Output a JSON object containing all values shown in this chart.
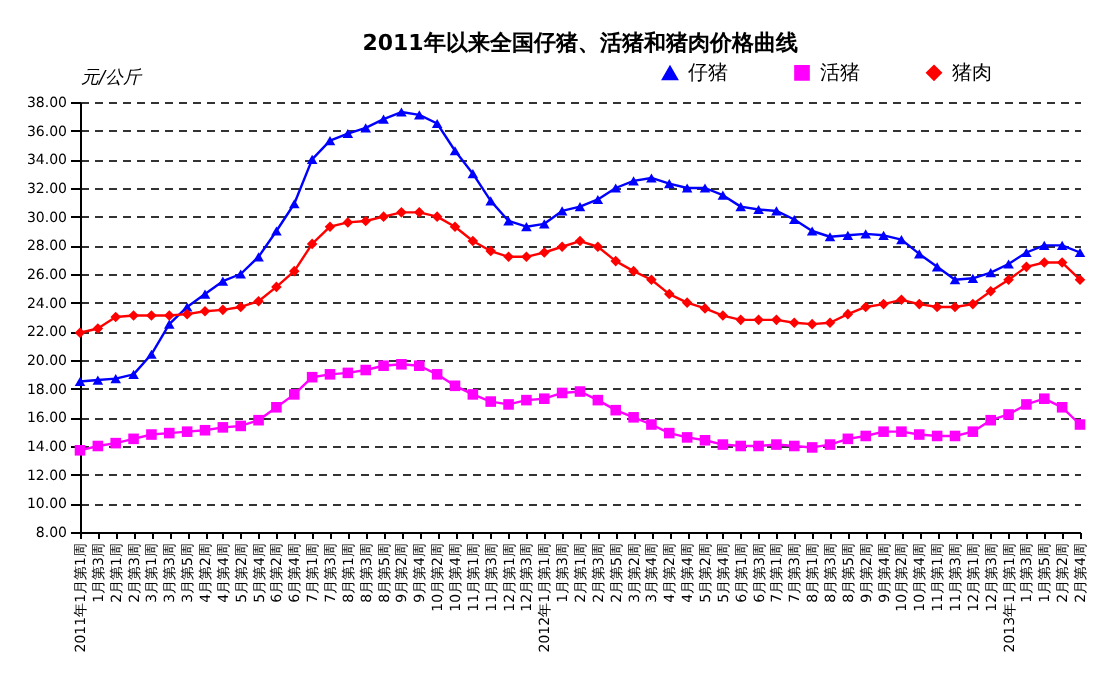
{
  "chart_data": {
    "type": "line",
    "title": "2011年以来全国仔猪、活猪和猪肉价格曲线",
    "ylabel": "元/公斤",
    "categories": [
      "2011年1月第1周",
      "1月第3周",
      "2月第1周",
      "2月第3周",
      "3月第1周",
      "3月第3周",
      "3月第5周",
      "4月第2周",
      "4月第4周",
      "5月第2周",
      "5月第4周",
      "6月第2周",
      "6月第4周",
      "7月第1周",
      "7月第3周",
      "8月第1周",
      "8月第3周",
      "8月第5周",
      "9月第2周",
      "9月第4周",
      "10月第2周",
      "10月第4周",
      "11月第1周",
      "11月第3周",
      "12月第1周",
      "12月第3周",
      "2012年1月第1周",
      "1月第3周",
      "2月第1周",
      "2月第3周",
      "2月第5周",
      "3月第2周",
      "3月第4周",
      "4月第2周",
      "4月第4周",
      "5月第2周",
      "5月第4周",
      "6月第1周",
      "6月第3周",
      "7月第1周",
      "7月第3周",
      "8月第1周",
      "8月第3周",
      "8月第5周",
      "9月第2周",
      "9月第4周",
      "10月第2周",
      "10月第4周",
      "11月第1周",
      "11月第3周",
      "12月第1周",
      "12月第3周",
      "2013年1月第1周",
      "1月第3周",
      "1月第5周",
      "2月第2周",
      "2月第4周"
    ],
    "series": [
      {
        "name": "仔猪",
        "color": "#0000ff",
        "marker": "triangle",
        "values": [
          18.5,
          18.6,
          18.7,
          19.0,
          20.4,
          22.5,
          23.7,
          24.6,
          25.5,
          26.0,
          27.2,
          29.0,
          30.9,
          34.0,
          35.3,
          35.8,
          36.2,
          36.8,
          37.3,
          37.1,
          36.5,
          34.6,
          33.0,
          31.1,
          29.7,
          29.3,
          29.5,
          30.4,
          30.7,
          31.2,
          32.0,
          32.5,
          32.7,
          32.3,
          32.0,
          32.0,
          31.5,
          30.7,
          30.5,
          30.4,
          29.8,
          29.0,
          28.6,
          28.7,
          28.8,
          28.7,
          28.4,
          27.4,
          26.5,
          25.6,
          25.7,
          26.1,
          26.7,
          27.5,
          28.0,
          28.0,
          27.5
        ]
      },
      {
        "name": "活猪",
        "color": "#ff00ff",
        "marker": "square",
        "values": [
          13.7,
          14.0,
          14.2,
          14.5,
          14.8,
          14.9,
          15.0,
          15.1,
          15.3,
          15.4,
          15.8,
          16.7,
          17.6,
          18.8,
          19.0,
          19.1,
          19.3,
          19.6,
          19.7,
          19.6,
          19.0,
          18.2,
          17.6,
          17.1,
          16.9,
          17.2,
          17.3,
          17.7,
          17.8,
          17.2,
          16.5,
          16.0,
          15.5,
          14.9,
          14.6,
          14.4,
          14.1,
          14.0,
          14.0,
          14.1,
          14.0,
          13.9,
          14.1,
          14.5,
          14.7,
          15.0,
          15.0,
          14.8,
          14.7,
          14.7,
          15.0,
          15.8,
          16.2,
          16.9,
          17.3,
          16.7,
          15.5
        ]
      },
      {
        "name": "猪肉",
        "color": "#ff0000",
        "marker": "diamond",
        "values": [
          21.9,
          22.2,
          23.0,
          23.1,
          23.1,
          23.1,
          23.2,
          23.4,
          23.5,
          23.7,
          24.1,
          25.1,
          26.2,
          28.1,
          29.3,
          29.6,
          29.7,
          30.0,
          30.3,
          30.3,
          30.0,
          29.3,
          28.3,
          27.6,
          27.2,
          27.2,
          27.5,
          27.9,
          28.3,
          27.9,
          26.9,
          26.2,
          25.6,
          24.6,
          24.0,
          23.6,
          23.1,
          22.8,
          22.8,
          22.8,
          22.6,
          22.5,
          22.6,
          23.2,
          23.7,
          23.9,
          24.2,
          23.9,
          23.7,
          23.7,
          23.9,
          24.8,
          25.6,
          26.5,
          26.8,
          26.8,
          25.6
        ]
      }
    ],
    "ylim": [
      8,
      38
    ],
    "yticks": [
      {
        "value": 8,
        "label": "8.00"
      },
      {
        "value": 10,
        "label": "10.00"
      },
      {
        "value": 12,
        "label": "12.00"
      },
      {
        "value": 14,
        "label": "14.00"
      },
      {
        "value": 16,
        "label": "16.00"
      },
      {
        "value": 18,
        "label": "18.00"
      },
      {
        "value": 20,
        "label": "20.00"
      },
      {
        "value": 22,
        "label": "22.00"
      },
      {
        "value": 24,
        "label": "24.00"
      },
      {
        "value": 26,
        "label": "26.00"
      },
      {
        "value": 28,
        "label": "28.00"
      },
      {
        "value": 30,
        "label": "30.00"
      },
      {
        "value": 32,
        "label": "32.00"
      },
      {
        "value": 34,
        "label": "34.00"
      },
      {
        "value": 36,
        "label": "36.00"
      },
      {
        "value": 38,
        "label": "38.00"
      }
    ],
    "grid": "y",
    "legend": "top right",
    "line_style": "solid"
  }
}
